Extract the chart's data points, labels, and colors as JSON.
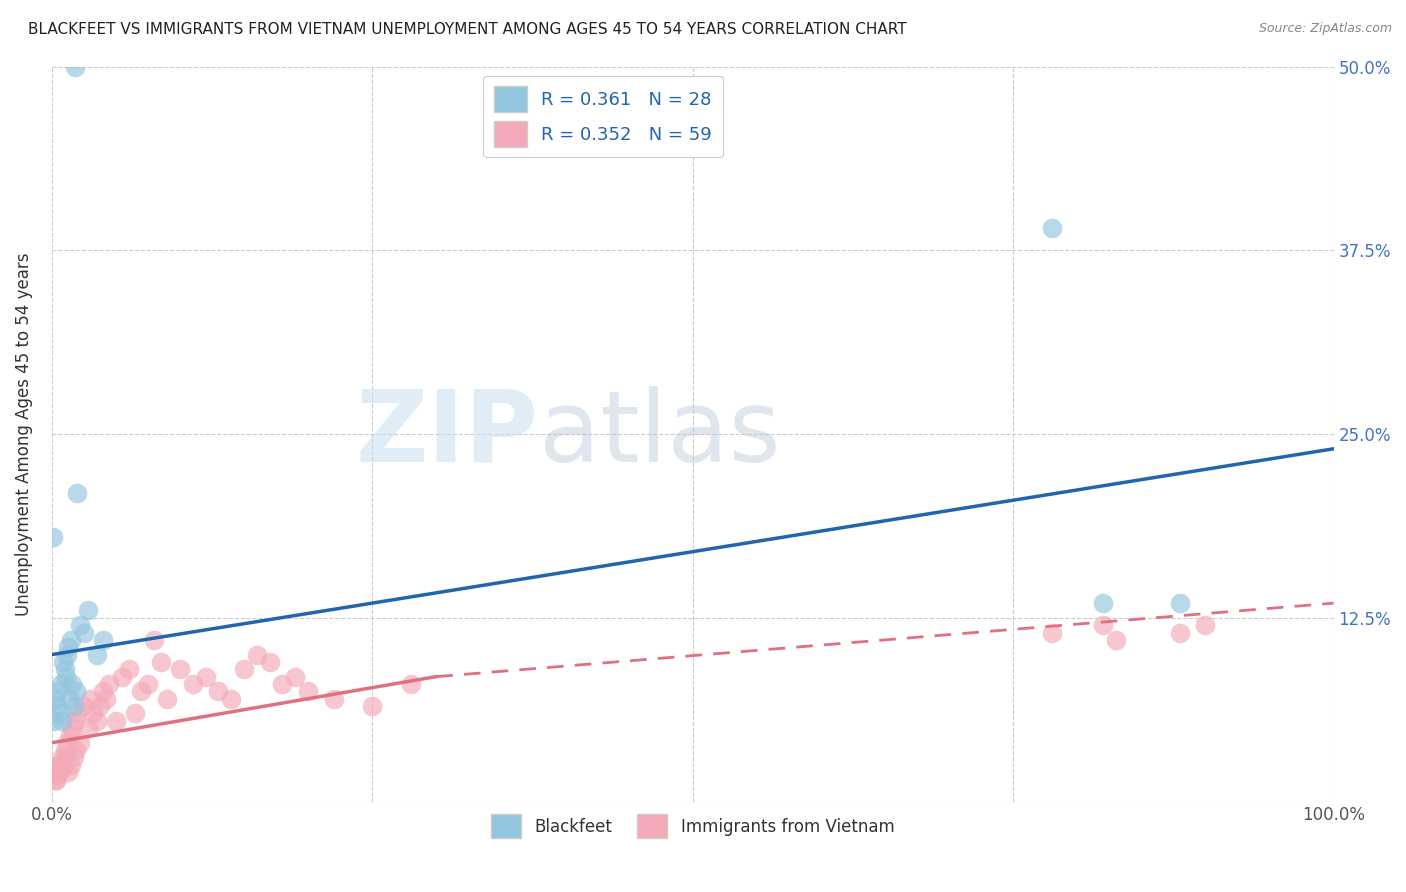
{
  "title": "BLACKFEET VS IMMIGRANTS FROM VIETNAM UNEMPLOYMENT AMONG AGES 45 TO 54 YEARS CORRELATION CHART",
  "source": "Source: ZipAtlas.com",
  "ylabel": "Unemployment Among Ages 45 to 54 years",
  "xlim": [
    0,
    1.0
  ],
  "ylim": [
    0,
    0.5
  ],
  "xticks": [
    0.0,
    0.25,
    0.5,
    0.75,
    1.0
  ],
  "xticklabels": [
    "0.0%",
    "",
    "",
    "",
    "100.0%"
  ],
  "yticks": [
    0.0,
    0.125,
    0.25,
    0.375,
    0.5
  ],
  "yticklabels_right": [
    "",
    "12.5%",
    "25.0%",
    "37.5%",
    "50.0%"
  ],
  "legend1_label": "R = 0.361   N = 28",
  "legend2_label": "R = 0.352   N = 59",
  "blackfeet_color": "#92c5de",
  "vietnam_color": "#f4a9b8",
  "trendline_blue": "#2166ac",
  "trendline_pink": "#e07080",
  "watermark_zip": "ZIP",
  "watermark_atlas": "atlas",
  "bf_trendline_x0": 0.0,
  "bf_trendline_y0": 0.1,
  "bf_trendline_x1": 1.0,
  "bf_trendline_y1": 0.24,
  "vn_trendline_solid_x0": 0.0,
  "vn_trendline_solid_y0": 0.04,
  "vn_trendline_solid_x1": 0.3,
  "vn_trendline_solid_y1": 0.085,
  "vn_trendline_dash_x0": 0.3,
  "vn_trendline_dash_y0": 0.085,
  "vn_trendline_dash_x1": 1.0,
  "vn_trendline_dash_y1": 0.135,
  "blackfeet_x": [
    0.018,
    0.003,
    0.004,
    0.005,
    0.006,
    0.007,
    0.008,
    0.009,
    0.01,
    0.011,
    0.012,
    0.013,
    0.014,
    0.015,
    0.016,
    0.017,
    0.019,
    0.022,
    0.025,
    0.028,
    0.035,
    0.04,
    0.02,
    0.78,
    0.82,
    0.88,
    0.002,
    0.001
  ],
  "blackfeet_y": [
    0.5,
    0.07,
    0.065,
    0.075,
    0.06,
    0.08,
    0.055,
    0.095,
    0.09,
    0.085,
    0.1,
    0.105,
    0.07,
    0.11,
    0.08,
    0.065,
    0.075,
    0.12,
    0.115,
    0.13,
    0.1,
    0.11,
    0.21,
    0.39,
    0.135,
    0.135,
    0.055,
    0.18
  ],
  "vietnam_x": [
    0.002,
    0.003,
    0.004,
    0.005,
    0.006,
    0.007,
    0.008,
    0.009,
    0.01,
    0.011,
    0.012,
    0.013,
    0.014,
    0.015,
    0.016,
    0.017,
    0.018,
    0.019,
    0.02,
    0.022,
    0.025,
    0.028,
    0.03,
    0.032,
    0.035,
    0.038,
    0.04,
    0.042,
    0.045,
    0.05,
    0.055,
    0.06,
    0.065,
    0.07,
    0.075,
    0.08,
    0.085,
    0.09,
    0.1,
    0.11,
    0.12,
    0.13,
    0.14,
    0.15,
    0.16,
    0.17,
    0.18,
    0.19,
    0.2,
    0.22,
    0.25,
    0.28,
    0.78,
    0.82,
    0.83,
    0.88,
    0.9,
    0.003,
    0.004
  ],
  "vietnam_y": [
    0.02,
    0.015,
    0.018,
    0.025,
    0.02,
    0.022,
    0.03,
    0.025,
    0.035,
    0.03,
    0.04,
    0.02,
    0.045,
    0.025,
    0.05,
    0.03,
    0.055,
    0.035,
    0.06,
    0.04,
    0.065,
    0.05,
    0.07,
    0.06,
    0.055,
    0.065,
    0.075,
    0.07,
    0.08,
    0.055,
    0.085,
    0.09,
    0.06,
    0.075,
    0.08,
    0.11,
    0.095,
    0.07,
    0.09,
    0.08,
    0.085,
    0.075,
    0.07,
    0.09,
    0.1,
    0.095,
    0.08,
    0.085,
    0.075,
    0.07,
    0.065,
    0.08,
    0.115,
    0.12,
    0.11,
    0.115,
    0.12,
    0.015,
    0.025
  ]
}
